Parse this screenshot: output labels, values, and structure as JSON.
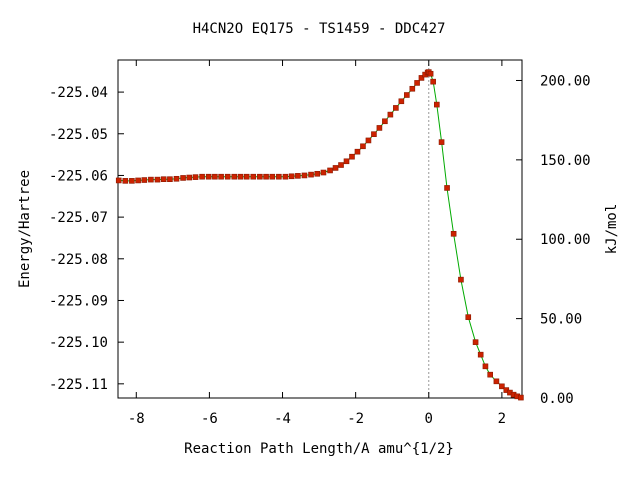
{
  "chart_data": {
    "type": "line",
    "title": "H4CN2O   EQ175 - TS1459 - DDC427",
    "xlabel": "Reaction Path Length/A amu^{1/2}",
    "ylabel": "Energy/Hartree",
    "y2label": "kJ/mol",
    "xlim": [
      -8.5,
      2.55
    ],
    "ylim": [
      -225.1134,
      -225.0323
    ],
    "y2lim": [
      0.0,
      212.9
    ],
    "x_ticks": [
      -8,
      -6,
      -4,
      -2,
      0,
      2
    ],
    "x_tick_labels": [
      "-8",
      "-6",
      "-4",
      "-2",
      "0",
      "2"
    ],
    "y_ticks": [
      -225.04,
      -225.05,
      -225.06,
      -225.07,
      -225.08,
      -225.09,
      -225.1,
      -225.11
    ],
    "y_tick_labels": [
      "-225.04",
      "-225.05",
      "-225.06",
      "-225.07",
      "-225.08",
      "-225.09",
      "-225.10",
      "-225.11"
    ],
    "y2_ticks": [
      0,
      50,
      100,
      150,
      200
    ],
    "y2_tick_labels": [
      "0.00",
      "50.00",
      "100.00",
      "150.00",
      "200.00"
    ],
    "ts_marker_x": 0.0,
    "grid": false,
    "line_color": "#00aa00",
    "marker_color": "#cc2200",
    "marker_edge_color": "#8a1a00",
    "series": [
      {
        "x": [
          -8.48,
          -8.3,
          -8.12,
          -7.95,
          -7.78,
          -7.6,
          -7.42,
          -7.25,
          -7.08,
          -6.9,
          -6.72,
          -6.55,
          -6.38,
          -6.2,
          -6.02,
          -5.85,
          -5.68,
          -5.5,
          -5.32,
          -5.15,
          -4.98,
          -4.8,
          -4.62,
          -4.45,
          -4.28,
          -4.1,
          -3.92,
          -3.75,
          -3.58,
          -3.4,
          -3.22,
          -3.05,
          -2.88,
          -2.7,
          -2.55,
          -2.4,
          -2.25,
          -2.1,
          -1.95,
          -1.8,
          -1.65,
          -1.5,
          -1.35,
          -1.2,
          -1.05,
          -0.9,
          -0.75,
          -0.6,
          -0.45,
          -0.32,
          -0.2,
          -0.1,
          -0.03,
          0.0,
          0.05,
          0.12,
          0.22,
          0.35,
          0.5,
          0.68,
          0.88,
          1.08,
          1.28,
          1.42,
          1.55,
          1.68,
          1.85,
          2.0,
          2.12,
          2.22,
          2.32,
          2.42,
          2.52
        ],
        "y": [
          -225.0612,
          -225.0613,
          -225.0613,
          -225.0612,
          -225.0611,
          -225.061,
          -225.061,
          -225.0609,
          -225.0609,
          -225.0608,
          -225.0606,
          -225.0605,
          -225.0604,
          -225.0603,
          -225.0603,
          -225.0603,
          -225.0603,
          -225.0603,
          -225.0603,
          -225.0603,
          -225.0603,
          -225.0603,
          -225.0603,
          -225.0603,
          -225.0603,
          -225.0603,
          -225.0603,
          -225.0602,
          -225.0601,
          -225.06,
          -225.0598,
          -225.0596,
          -225.0593,
          -225.0588,
          -225.0582,
          -225.0575,
          -225.0566,
          -225.0555,
          -225.0543,
          -225.053,
          -225.0516,
          -225.0501,
          -225.0486,
          -225.047,
          -225.0454,
          -225.0438,
          -225.0422,
          -225.0407,
          -225.0392,
          -225.0378,
          -225.0366,
          -225.0358,
          -225.0353,
          -225.0352,
          -225.0356,
          -225.0375,
          -225.043,
          -225.052,
          -225.063,
          -225.074,
          -225.085,
          -225.094,
          -225.1,
          -225.103,
          -225.1058,
          -225.1078,
          -225.1094,
          -225.1106,
          -225.1115,
          -225.1121,
          -225.1126,
          -225.113,
          -225.1133
        ]
      }
    ]
  }
}
